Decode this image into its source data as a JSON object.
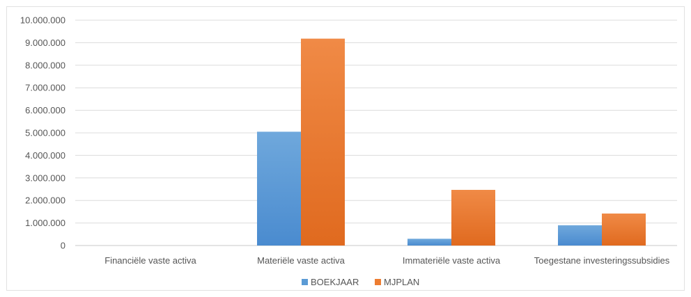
{
  "chart_data": {
    "type": "bar",
    "categories": [
      "Financiële vaste activa",
      "Materiële vaste activa",
      "Immateriële vaste activa",
      "Toegestane investeringssubsidies"
    ],
    "series": [
      {
        "name": "BOEKJAAR",
        "color": "#5b9bd5",
        "values": [
          0,
          5050000,
          300000,
          900000
        ]
      },
      {
        "name": "MJPLAN",
        "color": "#ed7d31",
        "values": [
          0,
          9180000,
          2470000,
          1420000
        ]
      }
    ],
    "ylim": [
      0,
      10000000
    ],
    "yticks": [
      0,
      1000000,
      2000000,
      3000000,
      4000000,
      5000000,
      6000000,
      7000000,
      8000000,
      9000000,
      10000000
    ],
    "ytick_labels": [
      "0",
      "1.000.000",
      "2.000.000",
      "3.000.000",
      "4.000.000",
      "5.000.000",
      "6.000.000",
      "7.000.000",
      "8.000.000",
      "9.000.000",
      "10.000.000"
    ],
    "grid": true,
    "legend_position": "bottom",
    "title": "",
    "xlabel": "",
    "ylabel": ""
  }
}
